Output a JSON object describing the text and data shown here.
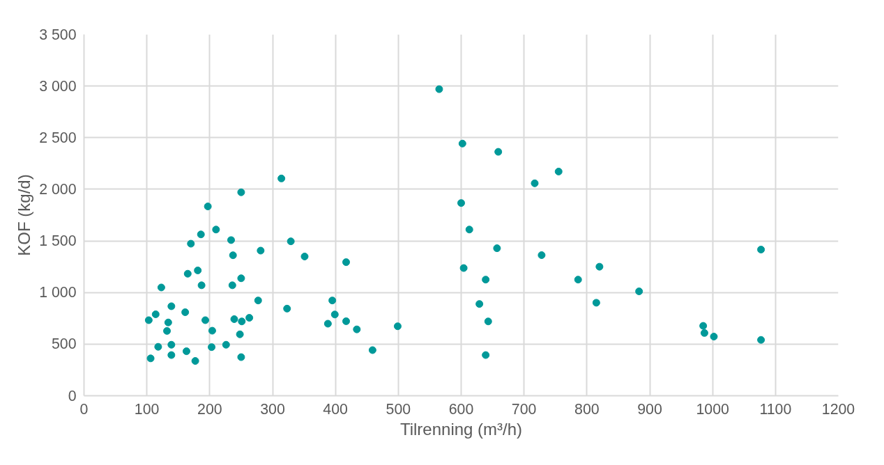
{
  "chart_data": {
    "type": "scatter",
    "xlabel": "Tilrenning (m³/h)",
    "ylabel": "KOF (kg/d)",
    "x": [
      565,
      602,
      659,
      717,
      755,
      600,
      613,
      657,
      728,
      604,
      639,
      786,
      820,
      883,
      815,
      629,
      643,
      639,
      417,
      417,
      434,
      459,
      499,
      985,
      987,
      1002,
      1077,
      1077,
      314,
      250,
      197,
      210,
      186,
      170,
      234,
      237,
      281,
      329,
      351,
      181,
      165,
      187,
      236,
      250,
      123,
      277,
      323,
      395,
      399,
      388,
      139,
      114,
      103,
      134,
      132,
      161,
      193,
      204,
      239,
      251,
      263,
      248,
      118,
      139,
      106,
      139,
      163,
      177,
      203,
      226,
      250
    ],
    "values": [
      2970,
      2443,
      2363,
      2058,
      2172,
      1867,
      1610,
      1429,
      1362,
      1237,
      1125,
      1125,
      1250,
      1011,
      901,
      889,
      720,
      394,
      1294,
      722,
      643,
      442,
      673,
      677,
      608,
      573,
      1416,
      541,
      2105,
      1971,
      1834,
      1610,
      1563,
      1473,
      1508,
      1361,
      1406,
      1496,
      1349,
      1214,
      1182,
      1070,
      1070,
      1138,
      1049,
      923,
      844,
      923,
      787,
      698,
      867,
      789,
      732,
      710,
      628,
      809,
      732,
      630,
      742,
      720,
      755,
      595,
      474,
      494,
      362,
      394,
      431,
      337,
      471,
      494,
      374
    ],
    "color": "#009999",
    "marker": "circle",
    "grid": true,
    "xlim": [
      0,
      1200
    ],
    "xticks": [
      0,
      100,
      200,
      300,
      400,
      500,
      600,
      700,
      800,
      900,
      1000,
      1100,
      1200
    ],
    "ylim": [
      0,
      3500
    ],
    "yticks": [
      0,
      500,
      {
        "value": 1000,
        "label": "1 000"
      },
      {
        "value": 1500,
        "label": "1 500"
      },
      {
        "value": 2000,
        "label": "2 000"
      },
      {
        "value": 2500,
        "label": "2 500"
      },
      {
        "value": 3000,
        "label": "3 000"
      },
      {
        "value": 3500,
        "label": "3 500"
      }
    ]
  }
}
